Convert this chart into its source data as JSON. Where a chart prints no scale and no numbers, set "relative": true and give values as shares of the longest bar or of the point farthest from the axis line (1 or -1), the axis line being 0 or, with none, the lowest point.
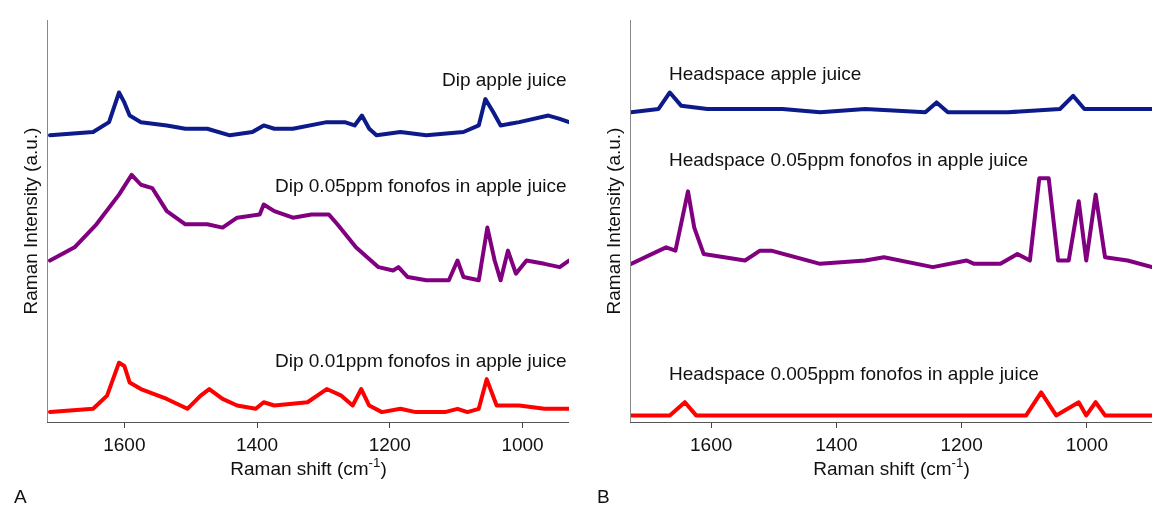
{
  "chart_data": [
    {
      "type": "line",
      "relative": true,
      "xlabel": "Raman shift (cm$^{-1}$)",
      "ylabel": "Raman Intensity (a.u.)",
      "xlim": [
        1715,
        930
      ],
      "xticks": [
        1600,
        1400,
        1200,
        1000
      ],
      "annotations": [
        "A"
      ],
      "series": [
        {
          "name": "Dip apple juice",
          "color": "#0d1a8a",
          "x": [
            1712,
            1647,
            1623,
            1608,
            1600,
            1592,
            1575,
            1536,
            1508,
            1475,
            1441,
            1407,
            1390,
            1374,
            1346,
            1295,
            1268,
            1253,
            1242,
            1231,
            1220,
            1184,
            1145,
            1089,
            1066,
            1056,
            1044,
            1033,
            1005,
            961,
            944,
            930
          ],
          "values": [
            0.87,
            0.88,
            0.91,
            1.0,
            0.97,
            0.93,
            0.91,
            0.9,
            0.89,
            0.89,
            0.87,
            0.88,
            0.9,
            0.89,
            0.89,
            0.91,
            0.91,
            0.9,
            0.93,
            0.89,
            0.87,
            0.88,
            0.87,
            0.88,
            0.9,
            0.98,
            0.94,
            0.9,
            0.91,
            0.93,
            0.92,
            0.91
          ]
        },
        {
          "name": "Dip 0.05ppm fonofos in apple juice",
          "color": "#800080",
          "x": [
            1712,
            1675,
            1642,
            1608,
            1589,
            1575,
            1558,
            1536,
            1508,
            1475,
            1452,
            1430,
            1396,
            1390,
            1374,
            1346,
            1318,
            1292,
            1279,
            1251,
            1217,
            1195,
            1187,
            1173,
            1145,
            1111,
            1098,
            1089,
            1066,
            1053,
            1042,
            1033,
            1022,
            1010,
            994,
            967,
            944,
            930
          ],
          "values": [
            0.49,
            0.53,
            0.6,
            0.69,
            0.75,
            0.72,
            0.71,
            0.64,
            0.6,
            0.6,
            0.59,
            0.62,
            0.63,
            0.66,
            0.64,
            0.62,
            0.63,
            0.63,
            0.6,
            0.53,
            0.47,
            0.46,
            0.47,
            0.44,
            0.43,
            0.43,
            0.49,
            0.44,
            0.43,
            0.59,
            0.49,
            0.43,
            0.52,
            0.45,
            0.49,
            0.48,
            0.47,
            0.49
          ]
        },
        {
          "name": "Dip 0.01ppm fonofos in apple juice",
          "color": "#ff0000",
          "x": [
            1712,
            1647,
            1626,
            1608,
            1600,
            1592,
            1575,
            1536,
            1505,
            1485,
            1472,
            1452,
            1430,
            1402,
            1390,
            1374,
            1324,
            1295,
            1273,
            1256,
            1243,
            1231,
            1212,
            1184,
            1161,
            1117,
            1098,
            1083,
            1066,
            1054,
            1039,
            1005,
            967,
            930
          ],
          "values": [
            0.03,
            0.04,
            0.08,
            0.18,
            0.17,
            0.12,
            0.1,
            0.07,
            0.04,
            0.08,
            0.1,
            0.07,
            0.05,
            0.04,
            0.06,
            0.05,
            0.06,
            0.1,
            0.08,
            0.05,
            0.1,
            0.05,
            0.03,
            0.04,
            0.03,
            0.03,
            0.04,
            0.03,
            0.04,
            0.13,
            0.05,
            0.05,
            0.04,
            0.04
          ]
        }
      ]
    },
    {
      "type": "line",
      "relative": true,
      "xlabel": "Raman shift (cm$^{-1}$)",
      "ylabel": "Raman Intensity (a.u.)",
      "xlim": [
        1728,
        896
      ],
      "xticks": [
        1600,
        1400,
        1200,
        1000
      ],
      "annotations": [
        "B"
      ],
      "series": [
        {
          "name": "Headspace apple juice",
          "color": "#0d1a8a",
          "x": [
            1728,
            1684,
            1666,
            1648,
            1606,
            1486,
            1426,
            1354,
            1258,
            1240,
            1222,
            1126,
            1043,
            1022,
            1004,
            947,
            896
          ],
          "values": [
            0.94,
            0.95,
            1.0,
            0.96,
            0.95,
            0.95,
            0.94,
            0.95,
            0.94,
            0.97,
            0.94,
            0.94,
            0.95,
            0.99,
            0.95,
            0.95,
            0.95
          ]
        },
        {
          "name": "Headspace 0.05ppm fonofos in apple juice",
          "color": "#800080",
          "x": [
            1728,
            1672,
            1657,
            1637,
            1627,
            1612,
            1546,
            1522,
            1504,
            1426,
            1354,
            1324,
            1246,
            1192,
            1180,
            1138,
            1111,
            1091,
            1076,
            1061,
            1046,
            1029,
            1013,
            1001,
            986,
            971,
            935,
            896
          ],
          "values": [
            0.48,
            0.53,
            0.52,
            0.7,
            0.59,
            0.51,
            0.49,
            0.52,
            0.52,
            0.48,
            0.49,
            0.5,
            0.47,
            0.49,
            0.48,
            0.48,
            0.51,
            0.49,
            0.74,
            0.74,
            0.49,
            0.49,
            0.67,
            0.49,
            0.69,
            0.5,
            0.49,
            0.47
          ]
        },
        {
          "name": "Headspace 0.005ppm fonofos in apple juice",
          "color": "#ff0000",
          "x": [
            1728,
            1666,
            1642,
            1624,
            1528,
            1306,
            1097,
            1073,
            1049,
            1013,
            1001,
            986,
            971,
            896
          ],
          "values": [
            0.02,
            0.02,
            0.06,
            0.02,
            0.02,
            0.02,
            0.02,
            0.09,
            0.02,
            0.06,
            0.02,
            0.06,
            0.02,
            0.02
          ]
        }
      ]
    }
  ]
}
